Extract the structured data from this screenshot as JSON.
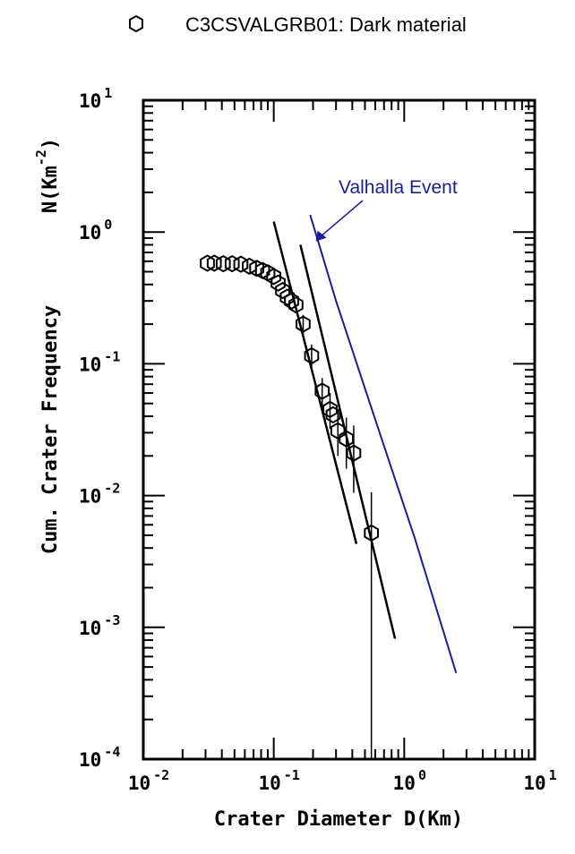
{
  "legend": {
    "marker_icon": "hexagon-icon",
    "label": "C3CSVALGRB01: Dark material"
  },
  "chart_data": {
    "type": "scatter",
    "xscale": "log",
    "yscale": "log",
    "xlim": [
      0.01,
      10
    ],
    "ylim": [
      0.0001,
      10
    ],
    "xlabel": "Crater Diameter D(Km)",
    "ylabel": {
      "main": "Cum. Crater Frequency",
      "unit_prefix": "N(Km",
      "unit_exp": "-2",
      "unit_suffix": ")"
    },
    "x_ticks": [
      {
        "value": 0.01,
        "base": "10",
        "exp": "-2"
      },
      {
        "value": 0.1,
        "base": "10",
        "exp": "-1"
      },
      {
        "value": 1,
        "base": "10",
        "exp": "0"
      },
      {
        "value": 10,
        "base": "10",
        "exp": "1"
      }
    ],
    "y_ticks": [
      {
        "value": 0.0001,
        "base": "10",
        "exp": "-4"
      },
      {
        "value": 0.001,
        "base": "10",
        "exp": "-3"
      },
      {
        "value": 0.01,
        "base": "10",
        "exp": "-2"
      },
      {
        "value": 0.1,
        "base": "10",
        "exp": "-1"
      },
      {
        "value": 1,
        "base": "10",
        "exp": "0"
      },
      {
        "value": 10,
        "base": "10",
        "exp": "1"
      }
    ],
    "series": [
      {
        "marker": "hexagon",
        "points": [
          {
            "x": 0.031,
            "y": 0.58
          },
          {
            "x": 0.035,
            "y": 0.58
          },
          {
            "x": 0.041,
            "y": 0.575
          },
          {
            "x": 0.048,
            "y": 0.575
          },
          {
            "x": 0.056,
            "y": 0.57
          },
          {
            "x": 0.065,
            "y": 0.55
          },
          {
            "x": 0.074,
            "y": 0.53
          },
          {
            "x": 0.082,
            "y": 0.51
          },
          {
            "x": 0.09,
            "y": 0.49
          },
          {
            "x": 0.1,
            "y": 0.46
          },
          {
            "x": 0.108,
            "y": 0.41
          },
          {
            "x": 0.117,
            "y": 0.36
          },
          {
            "x": 0.127,
            "y": 0.32
          },
          {
            "x": 0.137,
            "y": 0.3
          },
          {
            "x": 0.148,
            "y": 0.28
          },
          {
            "x": 0.168,
            "y": 0.2
          },
          {
            "x": 0.195,
            "y": 0.115
          },
          {
            "x": 0.235,
            "y": 0.062
          },
          {
            "x": 0.27,
            "y": 0.045
          },
          {
            "x": 0.285,
            "y": 0.041
          },
          {
            "x": 0.31,
            "y": 0.031
          },
          {
            "x": 0.36,
            "y": 0.027
          },
          {
            "x": 0.41,
            "y": 0.021
          },
          {
            "x": 0.56,
            "y": 0.0052
          }
        ],
        "error_bars": [
          {
            "x": 0.168,
            "lo": 0.165,
            "hi": 0.235
          },
          {
            "x": 0.195,
            "lo": 0.093,
            "hi": 0.14
          },
          {
            "x": 0.235,
            "lo": 0.047,
            "hi": 0.078
          },
          {
            "x": 0.27,
            "lo": 0.032,
            "hi": 0.06
          },
          {
            "x": 0.31,
            "lo": 0.02,
            "hi": 0.044
          },
          {
            "x": 0.36,
            "lo": 0.016,
            "hi": 0.039
          },
          {
            "x": 0.41,
            "lo": 0.0105,
            "hi": 0.034
          },
          {
            "x": 0.56,
            "lo": 0.0001,
            "hi": 0.0106
          }
        ]
      }
    ],
    "fit_lines": [
      {
        "x1": 0.1,
        "y1": 1.2,
        "x2": 0.43,
        "y2": 0.0043
      },
      {
        "x1": 0.16,
        "y1": 0.8,
        "x2": 0.85,
        "y2": 0.00082
      }
    ],
    "reference_curve": {
      "color": "#1c1c9a",
      "points": [
        {
          "x": 0.19,
          "y": 1.35
        },
        {
          "x": 0.3,
          "y": 0.3
        },
        {
          "x": 0.5,
          "y": 0.065
        },
        {
          "x": 0.8,
          "y": 0.016
        },
        {
          "x": 1.2,
          "y": 0.0048
        },
        {
          "x": 1.8,
          "y": 0.0013
        },
        {
          "x": 2.5,
          "y": 0.00045
        }
      ]
    },
    "annotation": {
      "text": "Valhalla Event",
      "color": "#1c1c9a",
      "arrow_to": {
        "x": 0.21,
        "y": 0.85
      }
    }
  }
}
